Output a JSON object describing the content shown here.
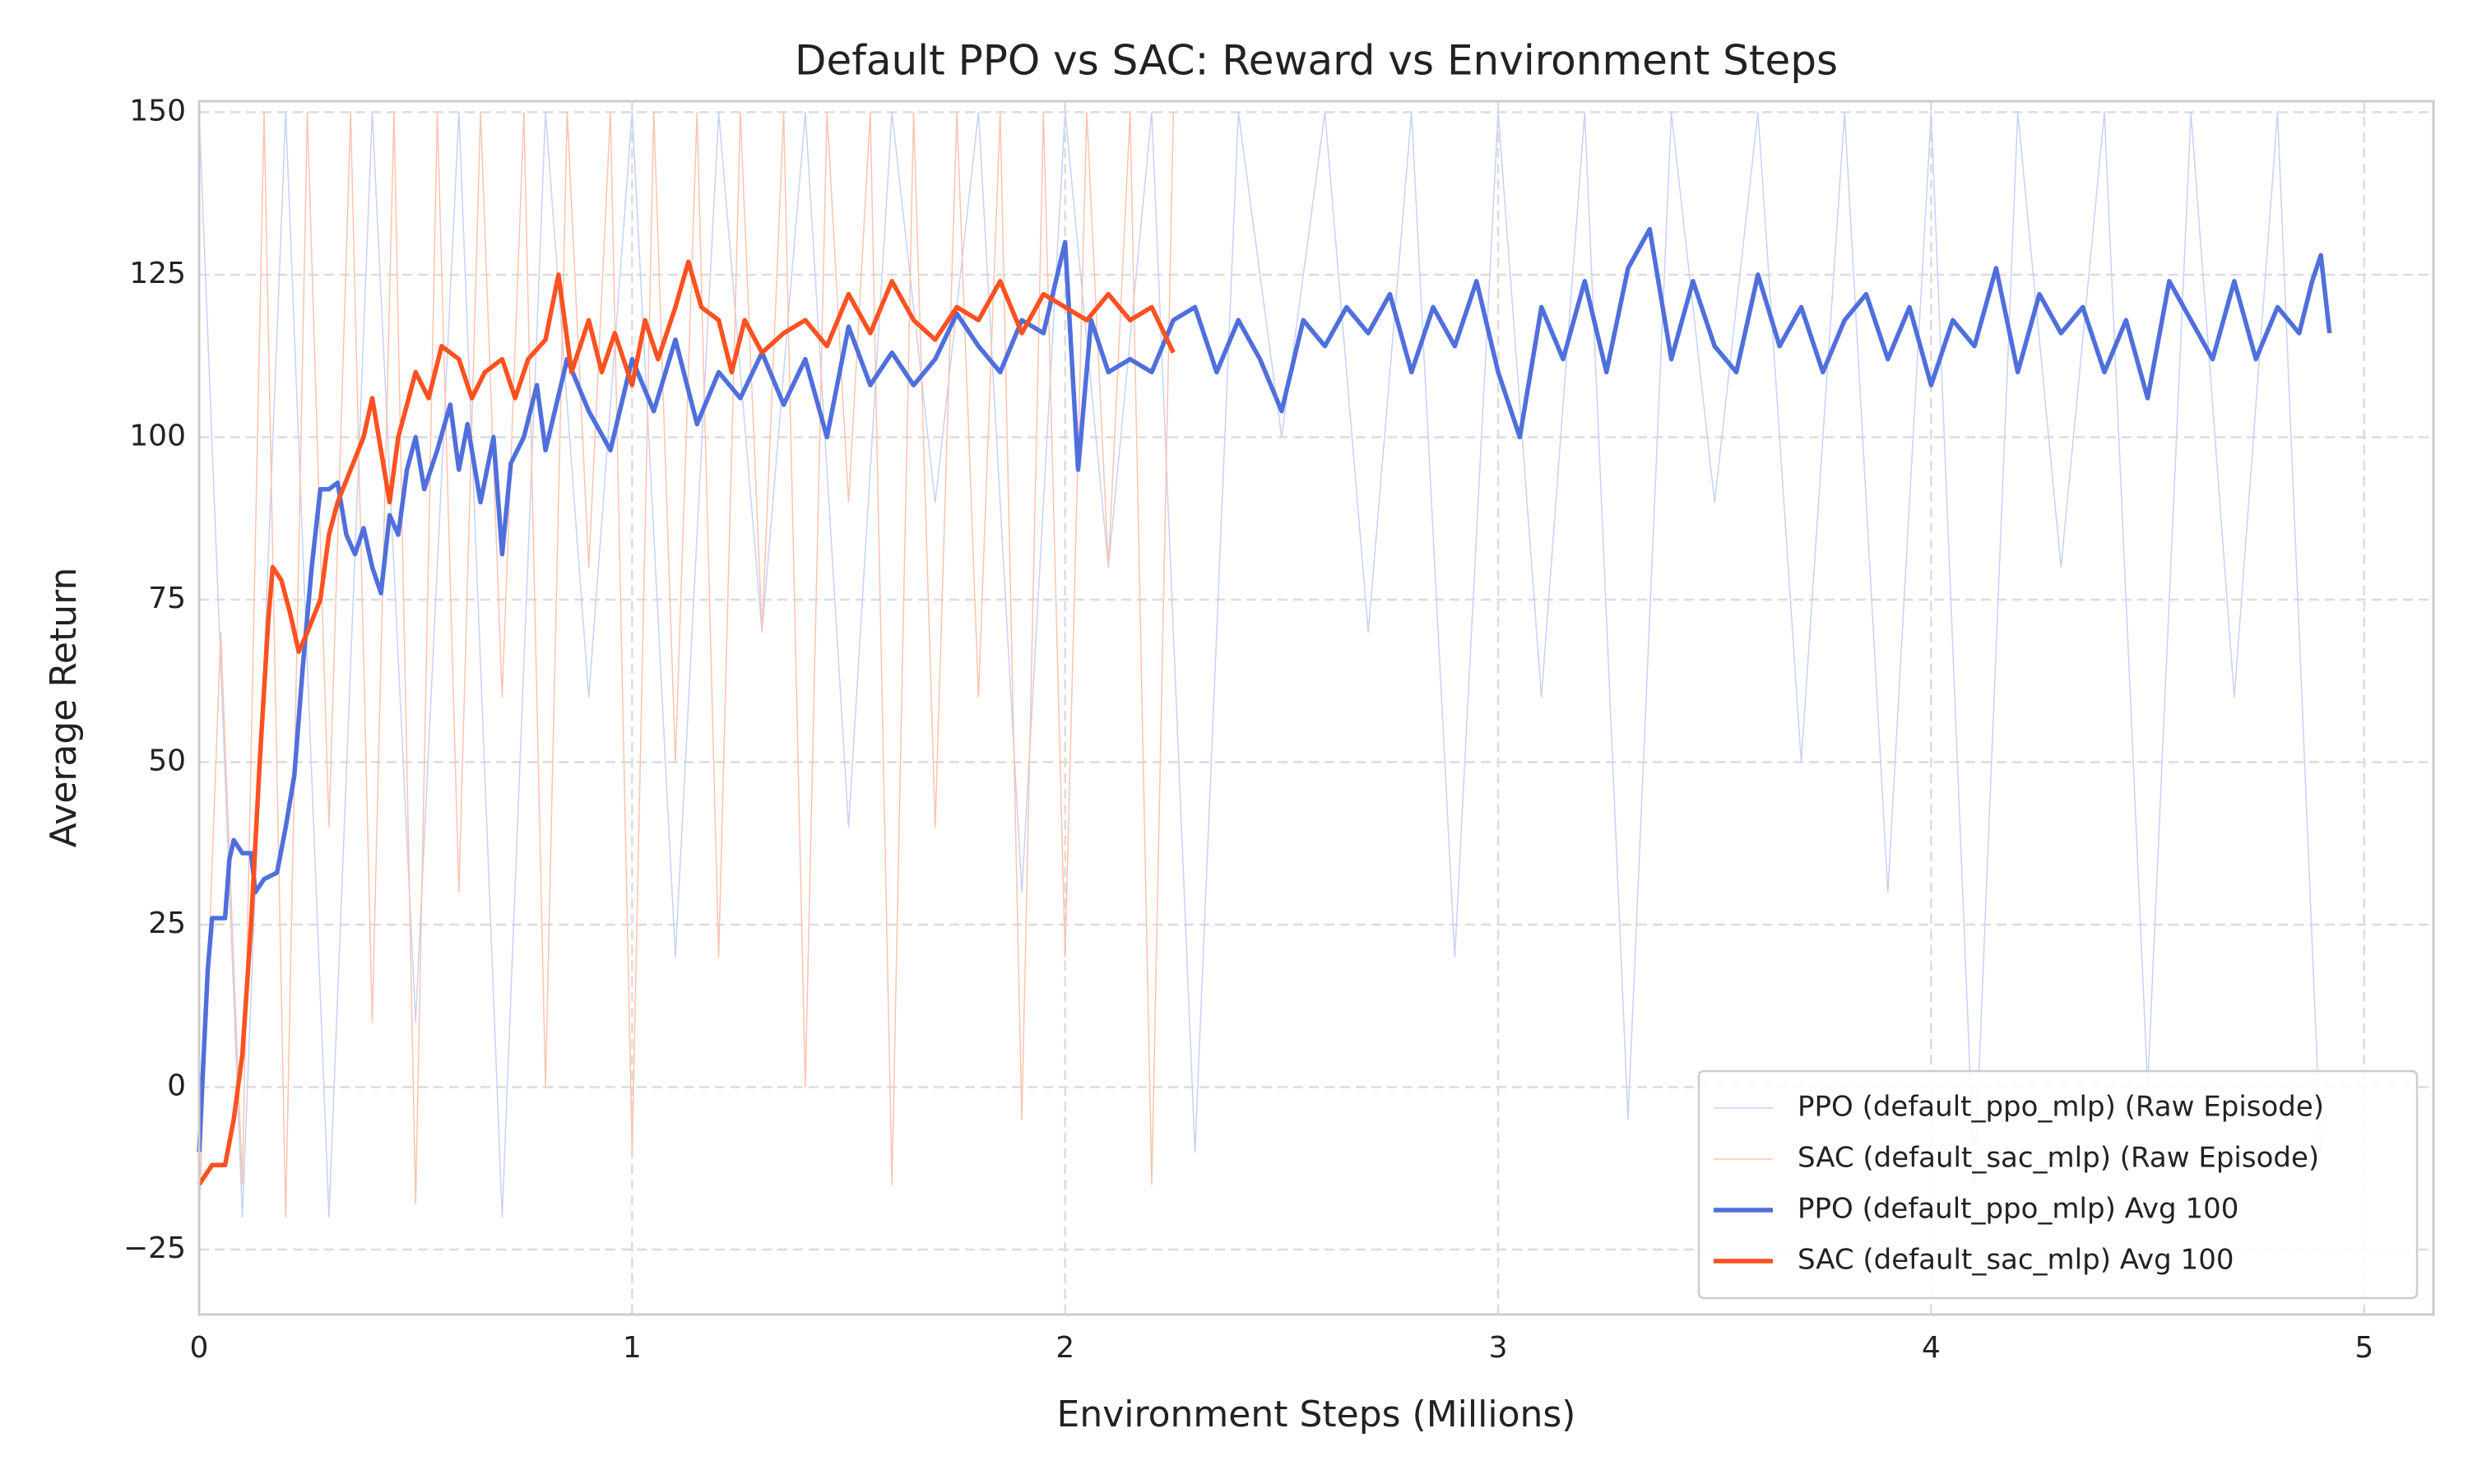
{
  "chart_data": {
    "type": "line",
    "title": "Default PPO vs SAC: Reward vs Environment Steps",
    "x_label": "Environment Steps (Millions)",
    "y_label": "Average Return",
    "xlim": [
      0,
      5.16
    ],
    "ylim": [
      -35,
      151.7
    ],
    "xticks": [
      0,
      1,
      2,
      3,
      4,
      5
    ],
    "yticks": [
      {
        "value": -25,
        "label": "−25"
      },
      0,
      25,
      50,
      75,
      100,
      125,
      150
    ],
    "grid": true,
    "legend": "lower right",
    "series": [
      {
        "name": "PPO (default_ppo_mlp) (Raw Episode)",
        "color": "#c6d1f5",
        "width": 1.5,
        "x": [
          0,
          0.1,
          0.2,
          0.3,
          0.4,
          0.5,
          0.6,
          0.7,
          0.8,
          0.9,
          1,
          1.1,
          1.2,
          1.3,
          1.4,
          1.5,
          1.6,
          1.7,
          1.8,
          1.9,
          2,
          2.1,
          2.2,
          2.3,
          2.4,
          2.5,
          2.6,
          2.7,
          2.8,
          2.9,
          3,
          3.1,
          3.2,
          3.3,
          3.4,
          3.5,
          3.6,
          3.7,
          3.8,
          3.9,
          4,
          4.1,
          4.2,
          4.3,
          4.4,
          4.5,
          4.6,
          4.7,
          4.8,
          4.9
        ],
        "values": [
          150,
          -20,
          150,
          -20,
          150,
          10,
          150,
          -20,
          150,
          60,
          150,
          20,
          150,
          70,
          150,
          40,
          150,
          90,
          150,
          30,
          150,
          80,
          150,
          -10,
          150,
          100,
          150,
          70,
          150,
          20,
          150,
          60,
          150,
          -5,
          150,
          90,
          150,
          50,
          150,
          30,
          150,
          -15,
          150,
          80,
          150,
          0,
          150,
          60,
          150,
          -10
        ]
      },
      {
        "name": "SAC (default_sac_mlp) (Raw Episode)",
        "color": "#fbc3ae",
        "width": 1.5,
        "x": [
          0,
          0.05,
          0.1,
          0.15,
          0.2,
          0.25,
          0.3,
          0.35,
          0.4,
          0.45,
          0.5,
          0.55,
          0.6,
          0.65,
          0.7,
          0.75,
          0.8,
          0.85,
          0.9,
          0.95,
          1,
          1.05,
          1.1,
          1.15,
          1.2,
          1.25,
          1.3,
          1.35,
          1.4,
          1.45,
          1.5,
          1.55,
          1.6,
          1.65,
          1.7,
          1.75,
          1.8,
          1.85,
          1.9,
          1.95,
          2,
          2.05,
          2.1,
          2.15,
          2.2,
          2.25
        ],
        "values": [
          -20,
          70,
          -15,
          150,
          -20,
          150,
          40,
          150,
          10,
          150,
          -18,
          150,
          30,
          150,
          60,
          150,
          0,
          150,
          80,
          150,
          -10,
          150,
          50,
          150,
          20,
          150,
          70,
          150,
          0,
          150,
          90,
          150,
          -15,
          150,
          40,
          150,
          60,
          150,
          -5,
          150,
          20,
          150,
          80,
          150,
          -15,
          150
        ]
      },
      {
        "name": "PPO (default_ppo_mlp) Avg 100",
        "color": "#4f6fdc",
        "width": 5.5,
        "x": [
          0,
          0.02,
          0.03,
          0.06,
          0.07,
          0.08,
          0.1,
          0.12,
          0.13,
          0.15,
          0.18,
          0.2,
          0.22,
          0.24,
          0.26,
          0.28,
          0.3,
          0.32,
          0.34,
          0.36,
          0.38,
          0.4,
          0.42,
          0.44,
          0.46,
          0.48,
          0.5,
          0.52,
          0.55,
          0.58,
          0.6,
          0.62,
          0.65,
          0.68,
          0.7,
          0.72,
          0.75,
          0.78,
          0.8,
          0.85,
          0.9,
          0.95,
          1,
          1.05,
          1.1,
          1.15,
          1.2,
          1.25,
          1.3,
          1.35,
          1.4,
          1.45,
          1.5,
          1.55,
          1.6,
          1.65,
          1.7,
          1.75,
          1.8,
          1.85,
          1.9,
          1.95,
          2,
          2.03,
          2.06,
          2.1,
          2.15,
          2.2,
          2.25,
          2.3,
          2.35,
          2.4,
          2.45,
          2.5,
          2.55,
          2.6,
          2.65,
          2.7,
          2.75,
          2.8,
          2.85,
          2.9,
          2.95,
          3,
          3.05,
          3.1,
          3.15,
          3.2,
          3.25,
          3.3,
          3.35,
          3.4,
          3.45,
          3.5,
          3.55,
          3.6,
          3.65,
          3.7,
          3.75,
          3.8,
          3.85,
          3.9,
          3.95,
          4,
          4.05,
          4.1,
          4.15,
          4.2,
          4.25,
          4.3,
          4.35,
          4.4,
          4.45,
          4.5,
          4.55,
          4.6,
          4.65,
          4.7,
          4.75,
          4.8,
          4.85,
          4.88,
          4.9,
          4.92
        ],
        "values": [
          -10,
          18,
          26,
          26,
          35,
          38,
          36,
          36,
          30,
          32,
          33,
          40,
          48,
          65,
          80,
          92,
          92,
          93,
          85,
          82,
          86,
          80,
          76,
          88,
          85,
          95,
          100,
          92,
          98,
          105,
          95,
          102,
          90,
          100,
          82,
          96,
          100,
          108,
          98,
          112,
          104,
          98,
          112,
          104,
          115,
          102,
          110,
          106,
          113,
          105,
          112,
          100,
          117,
          108,
          113,
          108,
          112,
          119,
          114,
          110,
          118,
          116,
          130,
          95,
          118,
          110,
          112,
          110,
          118,
          120,
          110,
          118,
          112,
          104,
          118,
          114,
          120,
          116,
          122,
          110,
          120,
          114,
          124,
          110,
          100,
          120,
          112,
          124,
          110,
          126,
          132,
          112,
          124,
          114,
          110,
          125,
          114,
          120,
          110,
          118,
          122,
          112,
          120,
          108,
          118,
          114,
          126,
          110,
          122,
          116,
          120,
          110,
          118,
          106,
          124,
          118,
          112,
          124,
          112,
          120,
          116,
          124,
          128,
          116
        ]
      },
      {
        "name": "SAC (default_sac_mlp) Avg 100",
        "color": "#fc5120",
        "width": 5.5,
        "x": [
          0,
          0.03,
          0.06,
          0.08,
          0.1,
          0.12,
          0.14,
          0.16,
          0.17,
          0.19,
          0.21,
          0.23,
          0.25,
          0.28,
          0.3,
          0.32,
          0.35,
          0.38,
          0.4,
          0.42,
          0.44,
          0.46,
          0.48,
          0.5,
          0.53,
          0.56,
          0.6,
          0.63,
          0.66,
          0.7,
          0.73,
          0.76,
          0.8,
          0.83,
          0.86,
          0.9,
          0.93,
          0.96,
          1,
          1.03,
          1.06,
          1.1,
          1.13,
          1.16,
          1.2,
          1.23,
          1.26,
          1.3,
          1.35,
          1.4,
          1.45,
          1.5,
          1.55,
          1.6,
          1.65,
          1.7,
          1.75,
          1.8,
          1.85,
          1.9,
          1.95,
          2,
          2.05,
          2.1,
          2.15,
          2.2,
          2.25
        ],
        "values": [
          -15,
          -12,
          -12,
          -5,
          5,
          25,
          50,
          72,
          80,
          78,
          73,
          67,
          70,
          75,
          85,
          90,
          95,
          100,
          106,
          98,
          90,
          100,
          105,
          110,
          106,
          114,
          112,
          106,
          110,
          112,
          106,
          112,
          115,
          125,
          110,
          118,
          110,
          116,
          108,
          118,
          112,
          120,
          127,
          120,
          118,
          110,
          118,
          113,
          116,
          118,
          114,
          122,
          116,
          124,
          118,
          115,
          120,
          118,
          124,
          116,
          122,
          120,
          118,
          122,
          118,
          120,
          113
        ]
      }
    ]
  }
}
